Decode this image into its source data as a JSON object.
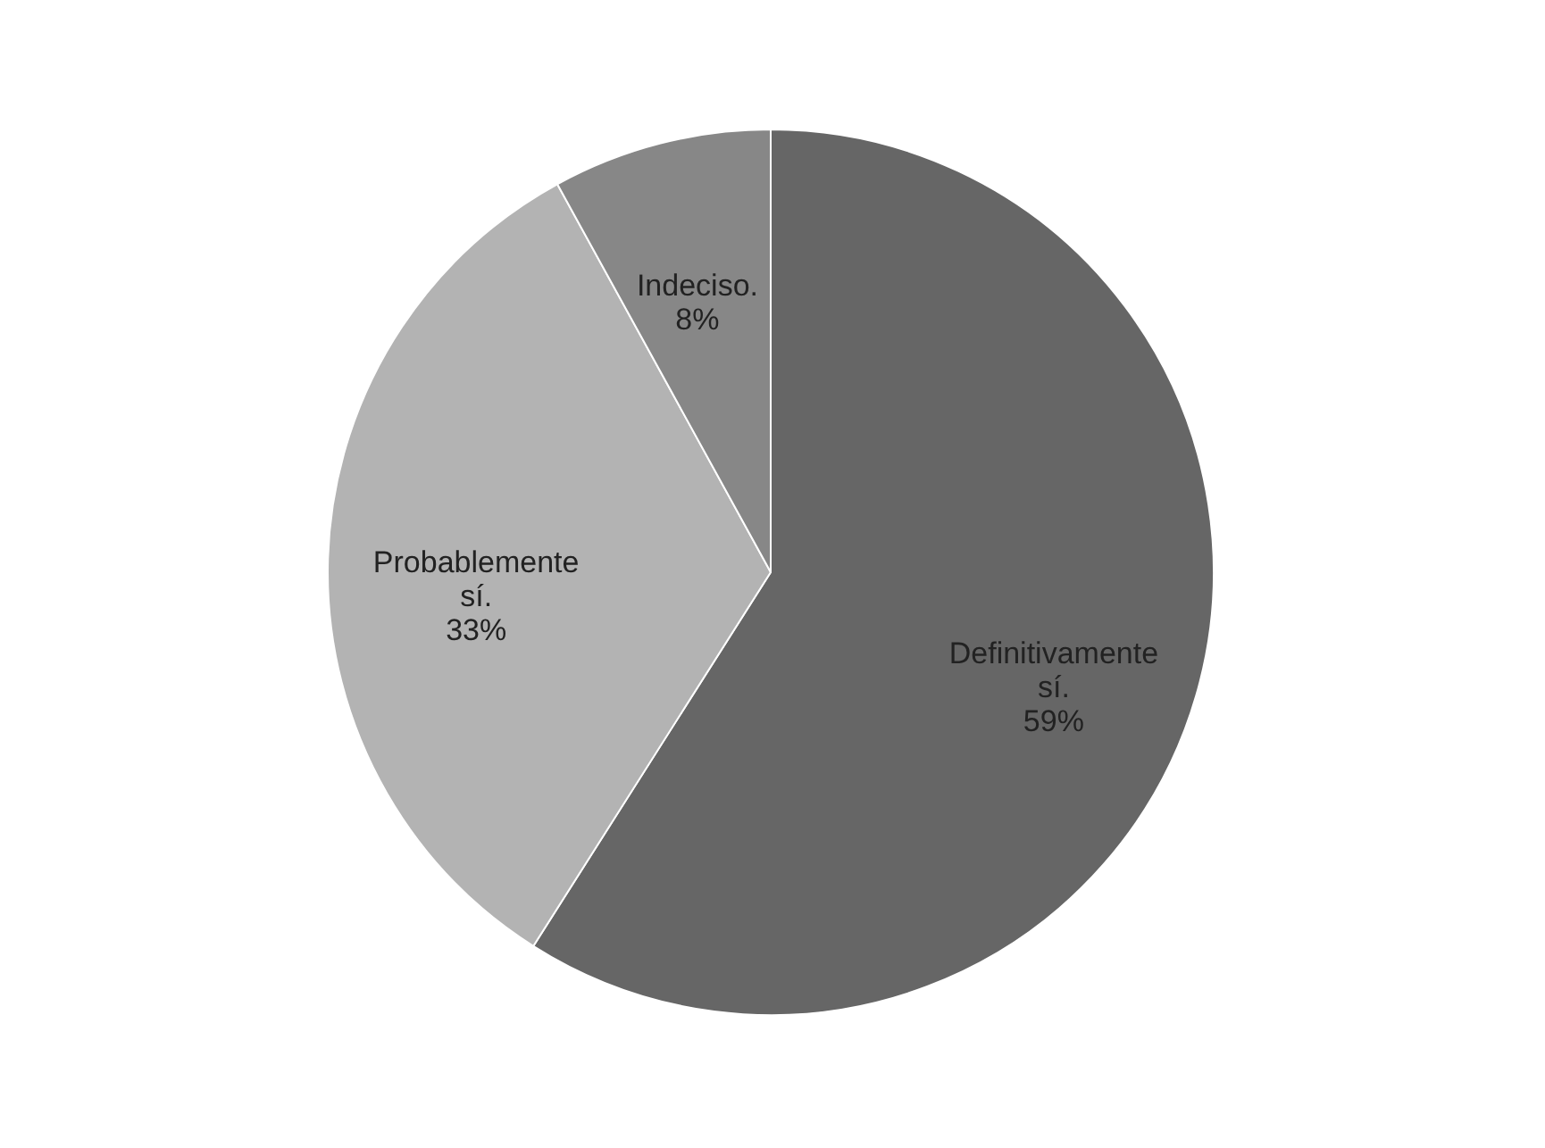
{
  "chart_data": {
    "type": "pie",
    "categories": [
      "Definitivamente sí.",
      "Probablemente sí.",
      "Indeciso."
    ],
    "values": [
      59,
      33,
      8
    ],
    "colors": [
      "#666666",
      "#b3b3b3",
      "#878787"
    ],
    "value_labels": [
      "59%",
      "33%",
      "8%"
    ],
    "legend": false
  }
}
